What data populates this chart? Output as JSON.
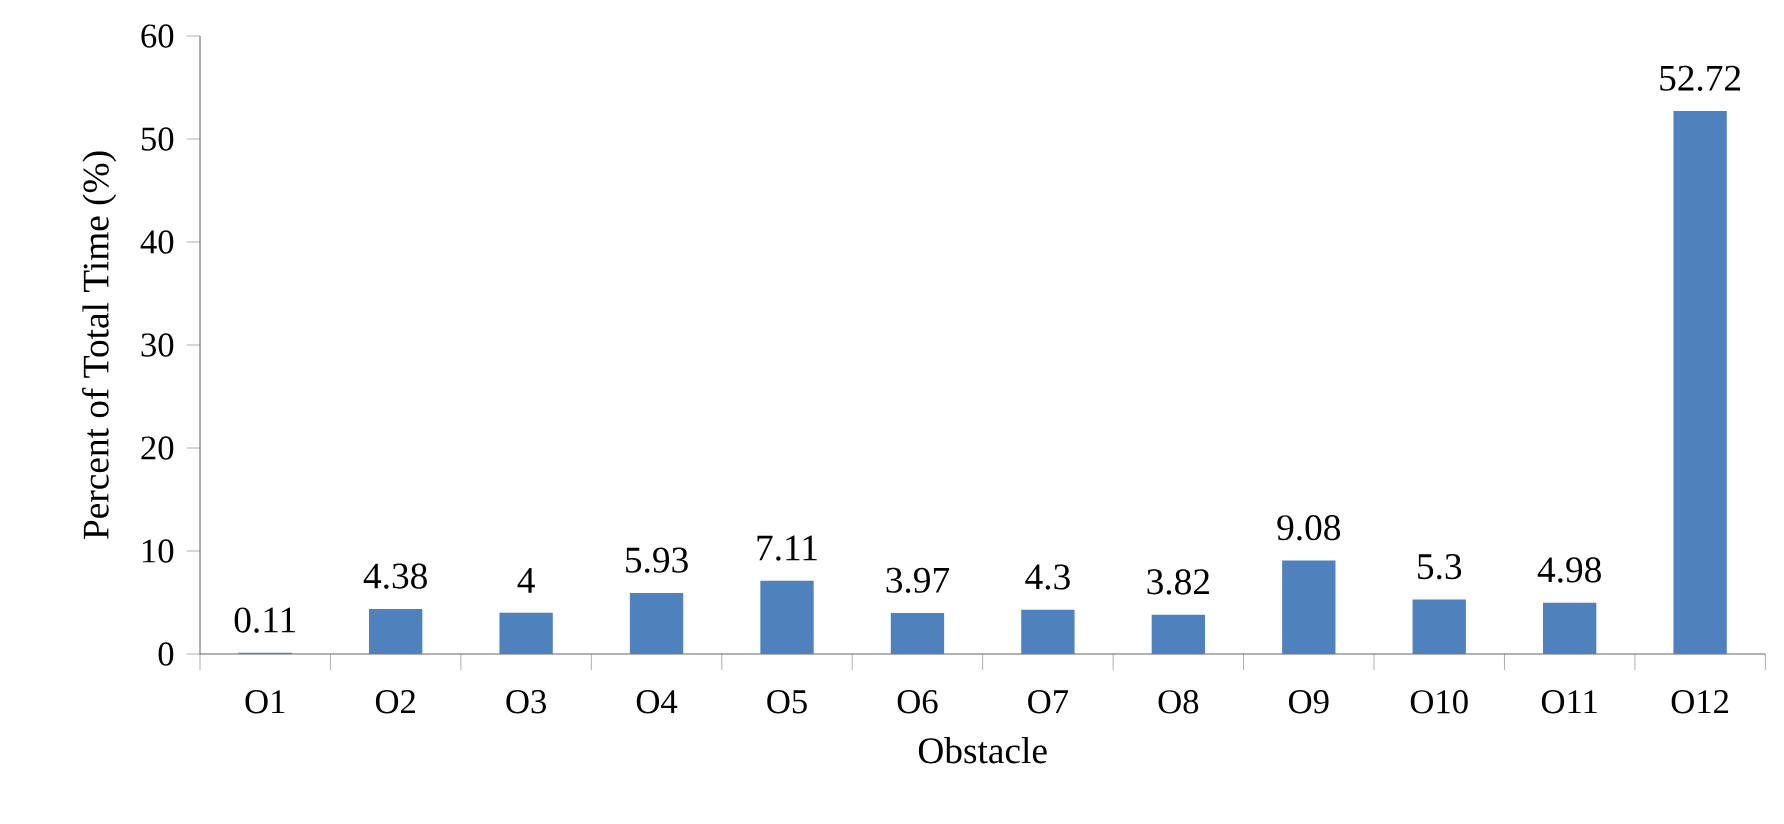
{
  "chart_data": {
    "type": "bar",
    "xlabel": "Obstacle",
    "ylabel": "Percent of Total Time (%)",
    "categories": [
      "O1",
      "O2",
      "O3",
      "O4",
      "O5",
      "O6",
      "O7",
      "O8",
      "O9",
      "O10",
      "O11",
      "O12"
    ],
    "values": [
      0.11,
      4.38,
      4,
      5.93,
      7.11,
      3.97,
      4.3,
      3.82,
      9.08,
      5.3,
      4.98,
      52.72
    ],
    "color": "#4f81bd",
    "ylim": [
      0,
      60
    ],
    "yticks": [
      0,
      10,
      20,
      30,
      40,
      50,
      60
    ],
    "data_labels": true
  }
}
